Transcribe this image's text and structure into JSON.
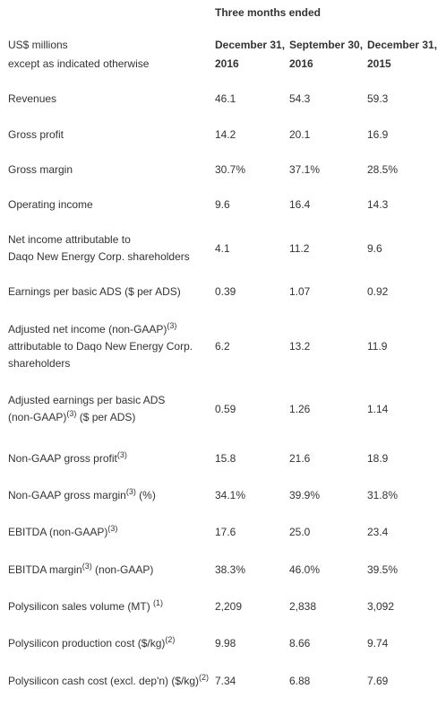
{
  "header": {
    "period": "Three months ended",
    "units": [
      "US$ millions",
      "except as indicated otherwise"
    ],
    "columns": [
      [
        "December 31,",
        "2016"
      ],
      [
        "September 30,",
        "2016"
      ],
      [
        "December 31,",
        "2015"
      ]
    ]
  },
  "table": {
    "rows": [
      {
        "lines": [
          [
            "Revenues"
          ]
        ],
        "values": [
          "46.1",
          "54.3",
          "59.3"
        ]
      },
      {
        "lines": [
          [
            "Gross profit"
          ]
        ],
        "values": [
          "14.2",
          "20.1",
          "16.9"
        ]
      },
      {
        "lines": [
          [
            "Gross margin"
          ]
        ],
        "values": [
          "30.7%",
          "37.1%",
          "28.5%"
        ]
      },
      {
        "lines": [
          [
            "Operating income"
          ]
        ],
        "values": [
          "9.6",
          "16.4",
          "14.3"
        ]
      },
      {
        "lines": [
          [
            "Net income attributable to"
          ],
          [
            "Daqo New Energy Corp. shareholders"
          ]
        ],
        "values": [
          "4.1",
          "11.2",
          "9.6"
        ]
      },
      {
        "lines": [
          [
            "Earnings per basic ADS ($ per ADS)"
          ]
        ],
        "values": [
          "0.39",
          "1.07",
          "0.92"
        ]
      },
      {
        "lines": [
          [
            "Adjusted net income (non-GAAP)",
            {
              "sup": "(3)"
            }
          ],
          [
            "attributable to Daqo New Energy Corp."
          ],
          [
            "shareholders"
          ]
        ],
        "values": [
          "6.2",
          "13.2",
          "11.9"
        ]
      },
      {
        "lines": [
          [
            "Adjusted earnings per basic ADS"
          ],
          [
            "(non-GAAP)",
            {
              "sup": "(3)"
            },
            " ($ per ADS)"
          ]
        ],
        "values": [
          "0.59",
          "1.26",
          "1.14"
        ]
      },
      {
        "lines": [
          [
            "Non-GAAP gross profit",
            {
              "sup": "(3)"
            }
          ]
        ],
        "values": [
          "15.8",
          "21.6",
          "18.9"
        ]
      },
      {
        "lines": [
          [
            "Non-GAAP gross margin",
            {
              "sup": "(3)"
            },
            " (%)"
          ]
        ],
        "values": [
          "34.1%",
          "39.9%",
          "31.8%"
        ]
      },
      {
        "lines": [
          [
            "EBITDA (non-GAAP)",
            {
              "sup": "(3)"
            }
          ]
        ],
        "values": [
          "17.6",
          "25.0",
          "23.4"
        ]
      },
      {
        "lines": [
          [
            "EBITDA margin",
            {
              "sup": "(3)"
            },
            " (non-GAAP)"
          ]
        ],
        "values": [
          "38.3%",
          "46.0%",
          "39.5%"
        ]
      },
      {
        "lines": [
          [
            "Polysilicon sales volume (MT) ",
            {
              "sup": "(1)"
            }
          ]
        ],
        "values": [
          "2,209",
          "2,838",
          "3,092"
        ]
      },
      {
        "lines": [
          [
            "Polysilicon production cost ($/kg)",
            {
              "sup": "(2)"
            }
          ]
        ],
        "values": [
          "9.98",
          "8.66",
          "9.74"
        ]
      },
      {
        "lines": [
          [
            "Polysilicon cash cost (excl. dep'n) ($/kg)",
            {
              "sup": "(2)"
            }
          ]
        ],
        "values": [
          "7.34",
          "6.88",
          "7.69"
        ]
      }
    ]
  }
}
